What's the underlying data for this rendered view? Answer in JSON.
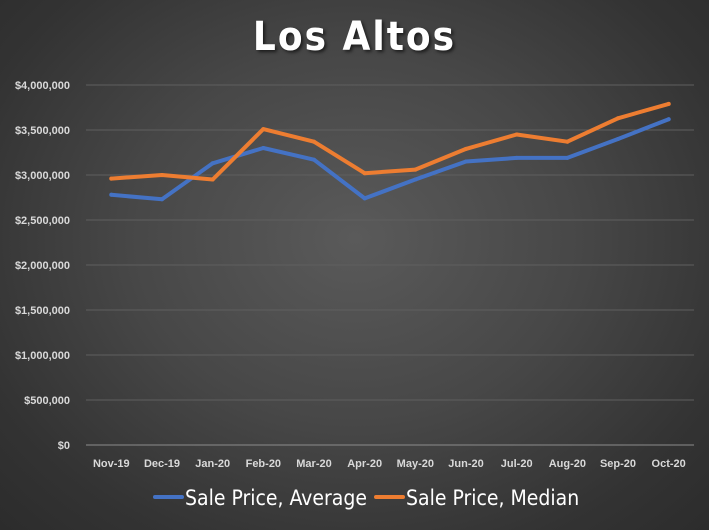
{
  "chart_data": {
    "type": "line",
    "title": "Los Altos",
    "xlabel": "",
    "ylabel": "",
    "categories": [
      "Nov-19",
      "Dec-19",
      "Jan-20",
      "Feb-20",
      "Mar-20",
      "Apr-20",
      "May-20",
      "Jun-20",
      "Jul-20",
      "Aug-20",
      "Sep-20",
      "Oct-20"
    ],
    "ylim": [
      0,
      4000000
    ],
    "yticks": [
      0,
      500000,
      1000000,
      1500000,
      2000000,
      2500000,
      3000000,
      3500000,
      4000000
    ],
    "ytick_labels": [
      "$0",
      "$500,000",
      "$1,000,000",
      "$1,500,000",
      "$2,000,000",
      "$2,500,000",
      "$3,000,000",
      "$3,500,000",
      "$4,000,000"
    ],
    "grid": true,
    "legend_position": "bottom",
    "series": [
      {
        "name": "Sale Price, Average",
        "color": "#4472C4",
        "values": [
          2780000,
          2730000,
          3130000,
          3300000,
          3170000,
          2740000,
          2950000,
          3150000,
          3190000,
          3190000,
          3400000,
          3620000
        ]
      },
      {
        "name": "Sale Price, Median",
        "color": "#ED7D31",
        "values": [
          2960000,
          3000000,
          2950000,
          3510000,
          3370000,
          3020000,
          3060000,
          3290000,
          3450000,
          3370000,
          3630000,
          3790000
        ]
      }
    ]
  }
}
